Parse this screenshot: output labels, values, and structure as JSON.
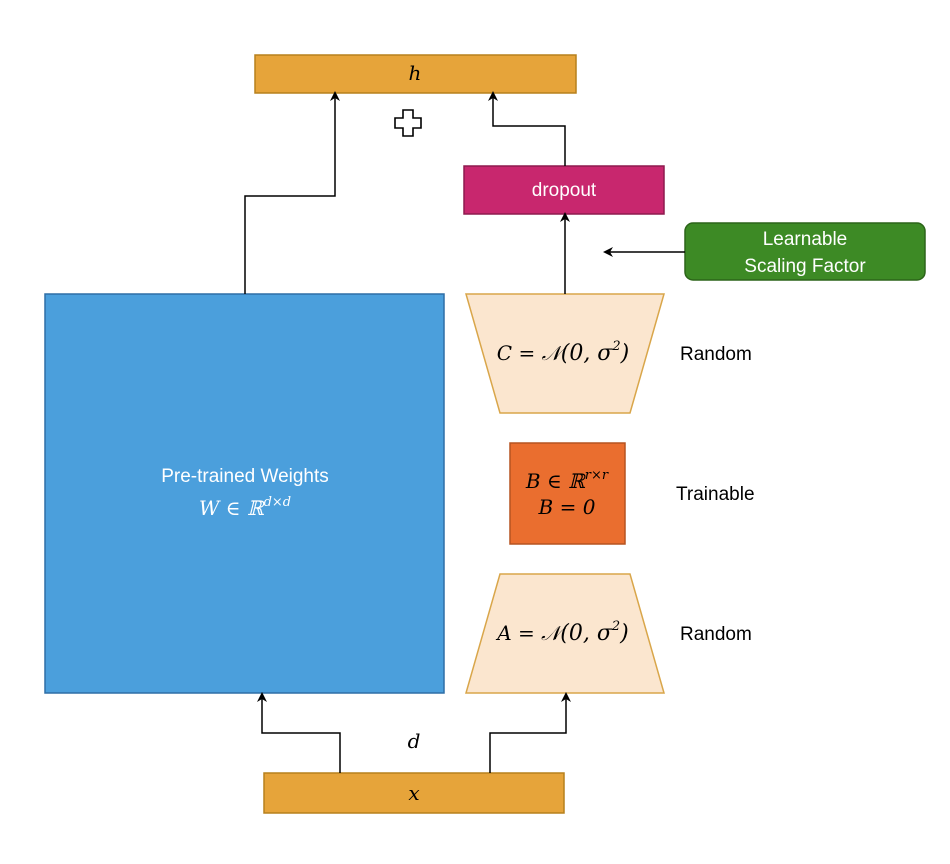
{
  "diagram": {
    "output": {
      "label": "h"
    },
    "input": {
      "label": "x"
    },
    "dim_label": "d",
    "plus_symbol": "plus-icon",
    "dropout": {
      "label": "dropout"
    },
    "scaling": {
      "line1": "Learnable",
      "line2": "Scaling Factor"
    },
    "pretrained": {
      "title": "Pre-trained Weights",
      "formula_main": "W ∈ ℝ",
      "formula_sup": "d×d"
    },
    "matrix_c": {
      "formula_lhs": "C = 𝒩",
      "formula_args": "(0, σ",
      "formula_sup": "2",
      "formula_end": ")",
      "tag": "Random"
    },
    "matrix_b": {
      "line1_main": "B ∈ ℝ",
      "line1_sup": "r×r",
      "line2": "B = 0",
      "tag": "Trainable"
    },
    "matrix_a": {
      "formula_lhs": "A = 𝒩",
      "formula_args": "(0, σ",
      "formula_sup": "2",
      "formula_end": ")",
      "tag": "Random"
    },
    "colors": {
      "orange_box": "#E6A43A",
      "orange_border": "#B7801C",
      "dropout_fill": "#C8276E",
      "dropout_border": "#8E1A4E",
      "green_fill": "#3D8A25",
      "green_border": "#2C6419",
      "blue_fill": "#4B9FDC",
      "blue_border": "#2E6EA6",
      "peach_fill": "#FBE6CF",
      "peach_border": "#D9A64A",
      "b_fill": "#EA6E2F",
      "b_border": "#B65320",
      "arrow": "#000000"
    }
  }
}
